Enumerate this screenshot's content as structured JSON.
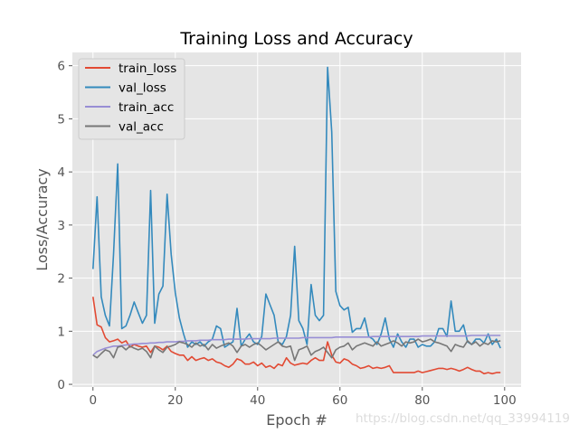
{
  "watermark": "https://blog.csdn.net/qq_33994119",
  "chart_data": {
    "type": "line",
    "title": "Training Loss and Accuracy",
    "xlabel": "Epoch #",
    "ylabel": "Loss/Accuracy",
    "xlim": [
      -5,
      104
    ],
    "ylim": [
      -0.05,
      6.25
    ],
    "xticks": [
      0,
      20,
      40,
      60,
      80,
      100
    ],
    "yticks": [
      0,
      1,
      2,
      3,
      4,
      5,
      6
    ],
    "grid": true,
    "legend_position": "top-left",
    "x": [
      0,
      1,
      2,
      3,
      4,
      5,
      6,
      7,
      8,
      9,
      10,
      11,
      12,
      13,
      14,
      15,
      16,
      17,
      18,
      19,
      20,
      21,
      22,
      23,
      24,
      25,
      26,
      27,
      28,
      29,
      30,
      31,
      32,
      33,
      34,
      35,
      36,
      37,
      38,
      39,
      40,
      41,
      42,
      43,
      44,
      45,
      46,
      47,
      48,
      49,
      50,
      51,
      52,
      53,
      54,
      55,
      56,
      57,
      58,
      59,
      60,
      61,
      62,
      63,
      64,
      65,
      66,
      67,
      68,
      69,
      70,
      71,
      72,
      73,
      74,
      75,
      76,
      77,
      78,
      79,
      80,
      81,
      82,
      83,
      84,
      85,
      86,
      87,
      88,
      89,
      90,
      91,
      92,
      93,
      94,
      95,
      96,
      97,
      98,
      99
    ],
    "series": [
      {
        "name": "train_loss",
        "color": "#e24a33",
        "values": [
          1.65,
          1.12,
          1.08,
          0.88,
          0.8,
          0.82,
          0.85,
          0.78,
          0.82,
          0.7,
          0.75,
          0.72,
          0.7,
          0.72,
          0.6,
          0.72,
          0.7,
          0.65,
          0.72,
          0.62,
          0.58,
          0.55,
          0.55,
          0.45,
          0.52,
          0.45,
          0.48,
          0.5,
          0.45,
          0.48,
          0.42,
          0.4,
          0.35,
          0.32,
          0.38,
          0.48,
          0.45,
          0.38,
          0.38,
          0.42,
          0.35,
          0.4,
          0.32,
          0.35,
          0.3,
          0.38,
          0.35,
          0.5,
          0.4,
          0.36,
          0.38,
          0.4,
          0.38,
          0.45,
          0.5,
          0.45,
          0.45,
          0.8,
          0.55,
          0.42,
          0.4,
          0.48,
          0.45,
          0.38,
          0.35,
          0.3,
          0.32,
          0.35,
          0.3,
          0.32,
          0.3,
          0.32,
          0.35,
          0.22,
          0.22,
          0.22,
          0.22,
          0.22,
          0.22,
          0.25,
          0.22,
          0.24,
          0.26,
          0.28,
          0.3,
          0.3,
          0.28,
          0.3,
          0.28,
          0.25,
          0.28,
          0.32,
          0.28,
          0.25,
          0.25,
          0.2,
          0.22,
          0.2,
          0.22,
          0.22
        ]
      },
      {
        "name": "val_loss",
        "color": "#348abd",
        "values": [
          2.17,
          3.53,
          1.65,
          1.3,
          1.1,
          2.45,
          4.15,
          1.05,
          1.1,
          1.3,
          1.55,
          1.35,
          1.15,
          1.3,
          3.65,
          1.15,
          1.7,
          1.85,
          3.58,
          2.45,
          1.72,
          1.25,
          0.95,
          0.7,
          0.8,
          0.75,
          0.8,
          0.72,
          0.8,
          0.85,
          1.1,
          1.05,
          0.7,
          0.75,
          0.8,
          1.43,
          0.72,
          0.85,
          0.95,
          0.8,
          0.75,
          0.9,
          1.7,
          1.5,
          1.3,
          0.8,
          0.75,
          0.9,
          1.3,
          2.6,
          1.2,
          1.05,
          0.75,
          1.88,
          1.3,
          1.2,
          1.3,
          5.97,
          4.75,
          1.75,
          1.48,
          1.4,
          1.45,
          0.98,
          1.05,
          1.05,
          1.25,
          0.9,
          0.85,
          0.75,
          0.95,
          1.25,
          0.85,
          0.7,
          0.95,
          0.8,
          0.7,
          0.85,
          0.85,
          0.7,
          0.75,
          0.72,
          0.72,
          0.8,
          1.05,
          1.05,
          0.9,
          1.57,
          1.0,
          1.0,
          1.12,
          0.8,
          0.75,
          0.85,
          0.85,
          0.78,
          0.95,
          0.75,
          0.85,
          0.68
        ]
      },
      {
        "name": "train_acc",
        "color": "#988ed5",
        "values": [
          0.55,
          0.62,
          0.65,
          0.68,
          0.7,
          0.72,
          0.72,
          0.73,
          0.74,
          0.75,
          0.76,
          0.76,
          0.77,
          0.77,
          0.78,
          0.78,
          0.79,
          0.79,
          0.8,
          0.8,
          0.8,
          0.81,
          0.81,
          0.82,
          0.82,
          0.82,
          0.83,
          0.83,
          0.83,
          0.84,
          0.84,
          0.84,
          0.84,
          0.85,
          0.85,
          0.85,
          0.85,
          0.85,
          0.86,
          0.86,
          0.86,
          0.86,
          0.86,
          0.86,
          0.87,
          0.87,
          0.87,
          0.87,
          0.87,
          0.87,
          0.87,
          0.88,
          0.88,
          0.88,
          0.88,
          0.88,
          0.88,
          0.88,
          0.88,
          0.89,
          0.89,
          0.89,
          0.89,
          0.89,
          0.89,
          0.89,
          0.89,
          0.89,
          0.9,
          0.9,
          0.9,
          0.9,
          0.9,
          0.9,
          0.9,
          0.9,
          0.9,
          0.9,
          0.9,
          0.9,
          0.91,
          0.91,
          0.91,
          0.91,
          0.91,
          0.91,
          0.91,
          0.91,
          0.91,
          0.91,
          0.91,
          0.91,
          0.92,
          0.92,
          0.92,
          0.92,
          0.92,
          0.92,
          0.92,
          0.92
        ]
      },
      {
        "name": "val_acc",
        "color": "#777777",
        "values": [
          0.55,
          0.5,
          0.58,
          0.65,
          0.62,
          0.5,
          0.7,
          0.72,
          0.65,
          0.72,
          0.68,
          0.65,
          0.68,
          0.62,
          0.5,
          0.72,
          0.65,
          0.6,
          0.7,
          0.72,
          0.75,
          0.8,
          0.78,
          0.75,
          0.7,
          0.78,
          0.72,
          0.75,
          0.65,
          0.75,
          0.68,
          0.72,
          0.75,
          0.78,
          0.72,
          0.6,
          0.72,
          0.75,
          0.7,
          0.75,
          0.78,
          0.72,
          0.65,
          0.7,
          0.75,
          0.8,
          0.72,
          0.7,
          0.72,
          0.45,
          0.65,
          0.68,
          0.72,
          0.55,
          0.62,
          0.65,
          0.7,
          0.6,
          0.5,
          0.65,
          0.7,
          0.72,
          0.78,
          0.65,
          0.72,
          0.75,
          0.78,
          0.75,
          0.72,
          0.8,
          0.72,
          0.75,
          0.78,
          0.82,
          0.78,
          0.72,
          0.8,
          0.78,
          0.8,
          0.85,
          0.8,
          0.82,
          0.85,
          0.8,
          0.78,
          0.75,
          0.72,
          0.62,
          0.75,
          0.72,
          0.7,
          0.82,
          0.75,
          0.8,
          0.72,
          0.78,
          0.75,
          0.82,
          0.8,
          0.82
        ]
      }
    ]
  }
}
